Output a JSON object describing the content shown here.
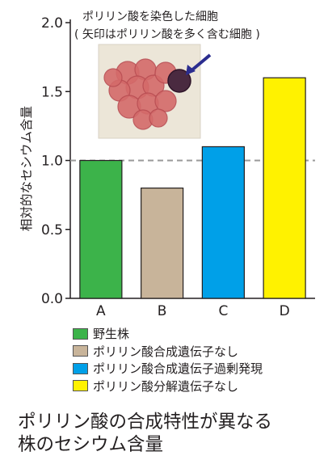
{
  "chart_data": {
    "type": "bar",
    "categories": [
      "A",
      "B",
      "C",
      "D"
    ],
    "values": [
      1.0,
      0.8,
      1.1,
      1.6
    ],
    "colors": [
      "#3cb34a",
      "#c8b49a",
      "#00a0e8",
      "#fff200"
    ],
    "ylabel": "相対的なセシウム含量",
    "ylim": [
      0,
      2.0
    ],
    "yticks": [
      "0.0",
      "0.5",
      "1.0",
      "1.5",
      "2.0"
    ],
    "reference_line": 1.0,
    "grid": false,
    "inset": {
      "title": "ポリリン酸を染色した細胞",
      "subtitle": "( 矢印はポリリン酸を多く含む細胞 )"
    },
    "legend": [
      "野生株",
      "ポリリン酸合成遺伝子なし",
      "ポリリン酸合成遺伝子過剰発現",
      "ポリリン酸分解遺伝子なし"
    ]
  },
  "caption_lines": [
    "ポリリン酸の合成特性が異なる",
    "株のセシウム含量"
  ]
}
